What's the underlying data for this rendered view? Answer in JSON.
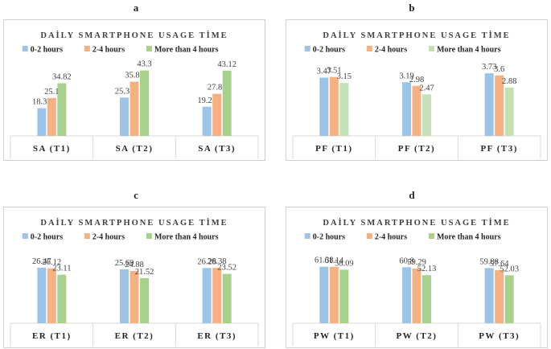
{
  "panel_letters": [
    "a",
    "b",
    "c",
    "d"
  ],
  "chart_data": [
    {
      "type": "bar",
      "title": "DAİLY SMARTPHONE USAGE TİME",
      "categories": [
        "SA (T1)",
        "SA (T2)",
        "SA (T3)"
      ],
      "series": [
        {
          "name": "0-2 hours",
          "values": [
            18.31,
            25.36,
            19.27
          ],
          "labels": [
            "18.31",
            "25.36",
            "19.27"
          ],
          "color": "#9DC3E6"
        },
        {
          "name": "2-4 hours",
          "values": [
            25.1,
            35.85,
            27.86
          ],
          "labels": [
            "25.1",
            "35.85",
            "27.86"
          ],
          "color": "#F4B183"
        },
        {
          "name": "More than 4 hours",
          "values": [
            34.82,
            43.3,
            43.12
          ],
          "labels": [
            "34.82",
            "43.3",
            "43.12"
          ],
          "color": "#A9D18E"
        }
      ],
      "ylim": [
        0,
        50
      ],
      "legend": "top"
    },
    {
      "type": "bar",
      "title": "DAİLY SMARTPHONE USAGE TİME",
      "categories": [
        "PF (T1)",
        "PF (T2)",
        "PF (T3)"
      ],
      "series": [
        {
          "name": "0-2 hours",
          "values": [
            3.47,
            3.19,
            3.73
          ],
          "labels": [
            "3.47",
            "3.19",
            "3.73"
          ],
          "color": "#9DC3E6"
        },
        {
          "name": "2-4 hours",
          "values": [
            3.51,
            2.98,
            3.6
          ],
          "labels": [
            "3.51",
            "2.98",
            "3.6"
          ],
          "color": "#F4B183"
        },
        {
          "name": "More than 4 hours",
          "values": [
            3.15,
            2.47,
            2.88
          ],
          "labels": [
            "3.15",
            "2.47",
            "2.88"
          ],
          "color": "#C5E0B4"
        }
      ],
      "ylim": [
        0,
        4.5
      ],
      "legend": "top"
    },
    {
      "type": "bar",
      "title": "DAİLY SMARTPHONE USAGE TİME",
      "categories": [
        "ER (T1)",
        "ER (T2)",
        "ER (T3)"
      ],
      "series": [
        {
          "name": "0-2 hours",
          "values": [
            26.47,
            25.69,
            26.28
          ],
          "labels": [
            "26.47",
            "25.69",
            "26.28"
          ],
          "color": "#9DC3E6"
        },
        {
          "name": "2-4 hours",
          "values": [
            26.12,
            24.88,
            26.38
          ],
          "labels": [
            "26.12",
            "24.88",
            "26.38"
          ],
          "color": "#F4B183"
        },
        {
          "name": "More than 4 hours",
          "values": [
            23.11,
            21.52,
            23.52
          ],
          "labels": [
            "23.11",
            "21.52",
            "23.52"
          ],
          "color": "#A9D18E"
        }
      ],
      "ylim": [
        0,
        36
      ],
      "legend": "top"
    },
    {
      "type": "bar",
      "title": "DAİLY SMARTPHONE USAGE TİME",
      "categories": [
        "PW (T1)",
        "PW (T2)",
        "PW (T3)"
      ],
      "series": [
        {
          "name": "0-2 hours",
          "values": [
            61.38,
            60.8,
            59.88
          ],
          "labels": [
            "61.38",
            "60.8",
            "59.88"
          ],
          "color": "#9DC3E6"
        },
        {
          "name": "2-4 hours",
          "values": [
            61.14,
            59.29,
            57.64
          ],
          "labels": [
            "61.14",
            "59.29",
            "57.64"
          ],
          "color": "#F4B183"
        },
        {
          "name": "More than 4 hours",
          "values": [
            58.09,
            52.13,
            52.03
          ],
          "labels": [
            "58.09",
            "52.13",
            "52.03"
          ],
          "color": "#A9D18E"
        }
      ],
      "ylim": [
        0,
        82
      ],
      "legend": "top"
    }
  ]
}
